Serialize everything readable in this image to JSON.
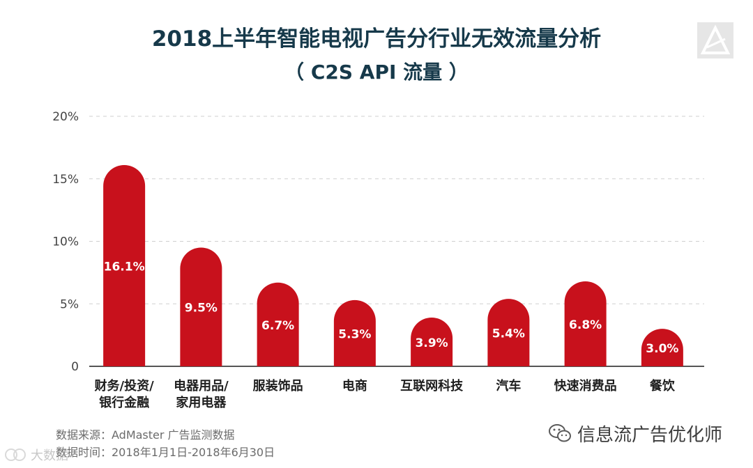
{
  "chart_data": {
    "type": "bar",
    "title": "2018上半年智能电视广告分行业无效流量分析",
    "subtitle": "（ C2S API 流量 ）",
    "categories": [
      [
        "财务/投资/",
        "银行金融"
      ],
      [
        "电器用品/",
        "家用电器"
      ],
      [
        "服装饰品"
      ],
      [
        "电商"
      ],
      [
        "互联网科技"
      ],
      [
        "汽车"
      ],
      [
        "快速消费品"
      ],
      [
        "餐饮"
      ]
    ],
    "values": [
      16.1,
      9.5,
      6.7,
      5.3,
      3.9,
      5.4,
      6.8,
      3.0
    ],
    "data_labels": [
      "16.1%",
      "9.5%",
      "6.7%",
      "5.3%",
      "3.9%",
      "5.4%",
      "6.8%",
      "3.0%"
    ],
    "ylim": [
      0,
      20
    ],
    "yticks": [
      0,
      5,
      10,
      15,
      20
    ],
    "ytick_labels": [
      "0",
      "5%",
      "10%",
      "15%",
      "20%"
    ],
    "xlabel": "",
    "ylabel": "",
    "grid": true,
    "bar_color": "#c8111c"
  },
  "footer": {
    "source_line1": "数据来源：AdMaster 广告监测数据",
    "source_line2": "数据时间：2018年1月1日-2018年6月30日",
    "brand_text": "信息流广告优化师",
    "watermark_text": "大数据"
  }
}
